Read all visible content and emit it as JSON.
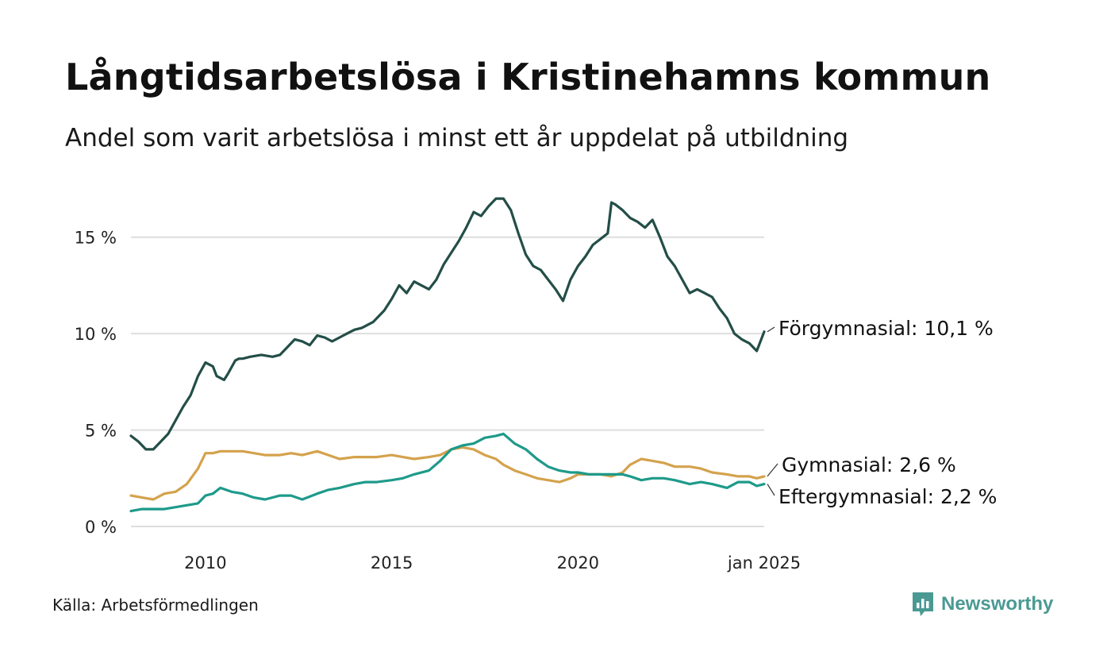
{
  "title": "Långtidsarbetslösa i Kristinehamns kommun",
  "subtitle": "Andel som varit arbetslösa i minst ett år uppdelat på utbildning",
  "source": "Källa: Arbetsförmedlingen",
  "brand": "Newsworthy",
  "colors": {
    "forgymnasial": "#234e47",
    "gymnasial": "#d4a24c",
    "eftergymnasial": "#1e9a8a",
    "grid": "#dedede",
    "brand": "#4a9a93"
  },
  "chart_data": {
    "type": "line",
    "title": "Långtidsarbetslösa i Kristinehamns kommun",
    "xlabel": "",
    "ylabel": "",
    "ylim": [
      0,
      17.5
    ],
    "xlim": [
      2008.0,
      2025.0
    ],
    "y_ticks": [
      0,
      5,
      10,
      15
    ],
    "y_tick_labels": [
      "0 %",
      "5 %",
      "10 %",
      "15 %"
    ],
    "x_ticks": [
      2010,
      2015,
      2020,
      2025.0
    ],
    "x_tick_labels": [
      "2010",
      "2015",
      "2020",
      "jan 2025"
    ],
    "grid": true,
    "series": [
      {
        "name": "Förgymnasial",
        "label": "Förgymnasial: 10,1 %",
        "x": [
          2008.0,
          2008.2,
          2008.4,
          2008.6,
          2008.8,
          2009.0,
          2009.2,
          2009.4,
          2009.6,
          2009.8,
          2010.0,
          2010.2,
          2010.3,
          2010.5,
          2010.6,
          2010.8,
          2010.9,
          2011.0,
          2011.2,
          2011.5,
          2011.8,
          2012.0,
          2012.2,
          2012.4,
          2012.6,
          2012.8,
          2013.0,
          2013.2,
          2013.4,
          2013.6,
          2013.8,
          2014.0,
          2014.2,
          2014.5,
          2014.8,
          2015.0,
          2015.2,
          2015.4,
          2015.6,
          2015.8,
          2016.0,
          2016.2,
          2016.4,
          2016.6,
          2016.8,
          2017.0,
          2017.2,
          2017.4,
          2017.6,
          2017.8,
          2018.0,
          2018.2,
          2018.4,
          2018.6,
          2018.8,
          2019.0,
          2019.2,
          2019.4,
          2019.6,
          2019.8,
          2020.0,
          2020.2,
          2020.4,
          2020.6,
          2020.8,
          2020.9,
          2021.0,
          2021.2,
          2021.4,
          2021.6,
          2021.8,
          2022.0,
          2022.2,
          2022.4,
          2022.6,
          2022.8,
          2023.0,
          2023.2,
          2023.4,
          2023.6,
          2023.8,
          2024.0,
          2024.2,
          2024.4,
          2024.6,
          2024.8,
          2025.0
        ],
        "y": [
          4.7,
          4.4,
          4.0,
          4.0,
          4.4,
          4.8,
          5.5,
          6.2,
          6.8,
          7.8,
          8.5,
          8.3,
          7.8,
          7.6,
          7.9,
          8.6,
          8.7,
          8.7,
          8.8,
          8.9,
          8.8,
          8.9,
          9.3,
          9.7,
          9.6,
          9.4,
          9.9,
          9.8,
          9.6,
          9.8,
          10.0,
          10.2,
          10.3,
          10.6,
          11.2,
          11.8,
          12.5,
          12.1,
          12.7,
          12.5,
          12.3,
          12.8,
          13.6,
          14.2,
          14.8,
          15.5,
          16.3,
          16.1,
          16.6,
          17.0,
          17.0,
          16.4,
          15.2,
          14.1,
          13.5,
          13.3,
          12.8,
          12.3,
          11.7,
          12.8,
          13.5,
          14.0,
          14.6,
          14.9,
          15.2,
          16.8,
          16.7,
          16.4,
          16.0,
          15.8,
          15.5,
          15.9,
          15.0,
          14.0,
          13.5,
          12.8,
          12.1,
          12.3,
          12.1,
          11.9,
          11.3,
          10.8,
          10.0,
          9.7,
          9.5,
          9.1,
          10.1
        ]
      },
      {
        "name": "Gymnasial",
        "label": "Gymnasial:  2,6 %",
        "x": [
          2008.0,
          2008.3,
          2008.6,
          2008.9,
          2009.2,
          2009.5,
          2009.8,
          2010.0,
          2010.2,
          2010.4,
          2010.7,
          2011.0,
          2011.3,
          2011.6,
          2012.0,
          2012.3,
          2012.6,
          2013.0,
          2013.3,
          2013.6,
          2014.0,
          2014.3,
          2014.6,
          2015.0,
          2015.3,
          2015.6,
          2016.0,
          2016.3,
          2016.6,
          2016.9,
          2017.2,
          2017.5,
          2017.8,
          2018.0,
          2018.3,
          2018.6,
          2018.9,
          2019.2,
          2019.5,
          2019.8,
          2020.0,
          2020.3,
          2020.6,
          2020.9,
          2021.2,
          2021.4,
          2021.7,
          2022.0,
          2022.3,
          2022.6,
          2023.0,
          2023.3,
          2023.6,
          2024.0,
          2024.3,
          2024.6,
          2024.8,
          2025.0
        ],
        "y": [
          1.6,
          1.5,
          1.4,
          1.7,
          1.8,
          2.2,
          3.0,
          3.8,
          3.8,
          3.9,
          3.9,
          3.9,
          3.8,
          3.7,
          3.7,
          3.8,
          3.7,
          3.9,
          3.7,
          3.5,
          3.6,
          3.6,
          3.6,
          3.7,
          3.6,
          3.5,
          3.6,
          3.7,
          4.0,
          4.1,
          4.0,
          3.7,
          3.5,
          3.2,
          2.9,
          2.7,
          2.5,
          2.4,
          2.3,
          2.5,
          2.7,
          2.7,
          2.7,
          2.6,
          2.8,
          3.2,
          3.5,
          3.4,
          3.3,
          3.1,
          3.1,
          3.0,
          2.8,
          2.7,
          2.6,
          2.6,
          2.5,
          2.6
        ]
      },
      {
        "name": "Eftergymnasial",
        "label": "Eftergymnasial:  2,2 %",
        "x": [
          2008.0,
          2008.3,
          2008.6,
          2008.9,
          2009.2,
          2009.5,
          2009.8,
          2010.0,
          2010.2,
          2010.4,
          2010.7,
          2011.0,
          2011.3,
          2011.6,
          2012.0,
          2012.3,
          2012.6,
          2013.0,
          2013.3,
          2013.6,
          2014.0,
          2014.3,
          2014.6,
          2015.0,
          2015.3,
          2015.6,
          2016.0,
          2016.3,
          2016.6,
          2016.9,
          2017.2,
          2017.5,
          2017.8,
          2018.0,
          2018.3,
          2018.6,
          2018.9,
          2019.2,
          2019.5,
          2019.8,
          2020.0,
          2020.3,
          2020.6,
          2020.9,
          2021.2,
          2021.4,
          2021.7,
          2022.0,
          2022.3,
          2022.6,
          2023.0,
          2023.3,
          2023.6,
          2024.0,
          2024.3,
          2024.6,
          2024.8,
          2025.0
        ],
        "y": [
          0.8,
          0.9,
          0.9,
          0.9,
          1.0,
          1.1,
          1.2,
          1.6,
          1.7,
          2.0,
          1.8,
          1.7,
          1.5,
          1.4,
          1.6,
          1.6,
          1.4,
          1.7,
          1.9,
          2.0,
          2.2,
          2.3,
          2.3,
          2.4,
          2.5,
          2.7,
          2.9,
          3.4,
          4.0,
          4.2,
          4.3,
          4.6,
          4.7,
          4.8,
          4.3,
          4.0,
          3.5,
          3.1,
          2.9,
          2.8,
          2.8,
          2.7,
          2.7,
          2.7,
          2.7,
          2.6,
          2.4,
          2.5,
          2.5,
          2.4,
          2.2,
          2.3,
          2.2,
          2.0,
          2.3,
          2.3,
          2.1,
          2.2
        ]
      }
    ]
  }
}
